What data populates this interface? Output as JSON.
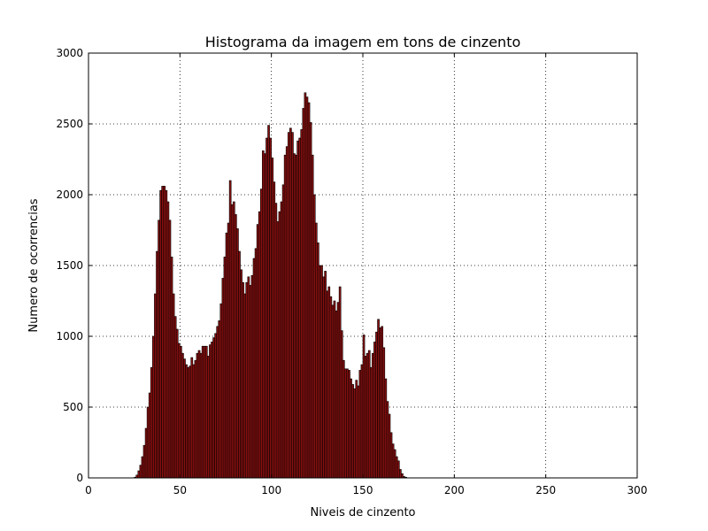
{
  "chart_data": {
    "type": "bar",
    "title": "Histograma da imagem em tons de cinzento",
    "xlabel": "Niveis de cinzento",
    "ylabel": "Numero de ocorrencias",
    "xlim": [
      0,
      300
    ],
    "ylim": [
      0,
      3000
    ],
    "xticks": [
      "0",
      "50",
      "100",
      "150",
      "200",
      "250",
      "300"
    ],
    "yticks": [
      "0",
      "500",
      "1000",
      "1500",
      "2000",
      "2500",
      "3000"
    ],
    "grid": true,
    "bar_color": "#8b1010",
    "highlight_color": "#ff0000",
    "bin_start": 25,
    "bin_width": 1,
    "values": [
      5,
      20,
      50,
      90,
      150,
      230,
      350,
      500,
      600,
      780,
      1000,
      1300,
      1600,
      1820,
      2030,
      2060,
      2060,
      2030,
      1950,
      1820,
      1560,
      1300,
      1140,
      1050,
      950,
      930,
      880,
      840,
      800,
      780,
      790,
      850,
      800,
      830,
      880,
      900,
      880,
      930,
      930,
      930,
      860,
      940,
      960,
      990,
      1020,
      1070,
      1110,
      1230,
      1410,
      1560,
      1730,
      1800,
      2100,
      1930,
      1950,
      1860,
      1760,
      1600,
      1470,
      1380,
      1300,
      1380,
      1420,
      1360,
      1430,
      1550,
      1620,
      1790,
      1880,
      2040,
      2310,
      2290,
      2400,
      2490,
      2400,
      2260,
      2090,
      1940,
      1810,
      1880,
      1950,
      2070,
      2280,
      2340,
      2440,
      2470,
      2440,
      2290,
      2280,
      2380,
      2400,
      2460,
      2610,
      2720,
      2690,
      2650,
      2510,
      2280,
      2000,
      1800,
      1660,
      1500,
      1500,
      1420,
      1460,
      1320,
      1350,
      1280,
      1220,
      1250,
      1180,
      1240,
      1350,
      1040,
      830,
      770,
      770,
      760,
      700,
      660,
      630,
      690,
      650,
      760,
      800,
      1010,
      860,
      880,
      900,
      780,
      880,
      960,
      1030,
      1120,
      1060,
      1070,
      920,
      700,
      540,
      450,
      320,
      240,
      200,
      150,
      120,
      60,
      30,
      10,
      5
    ]
  }
}
